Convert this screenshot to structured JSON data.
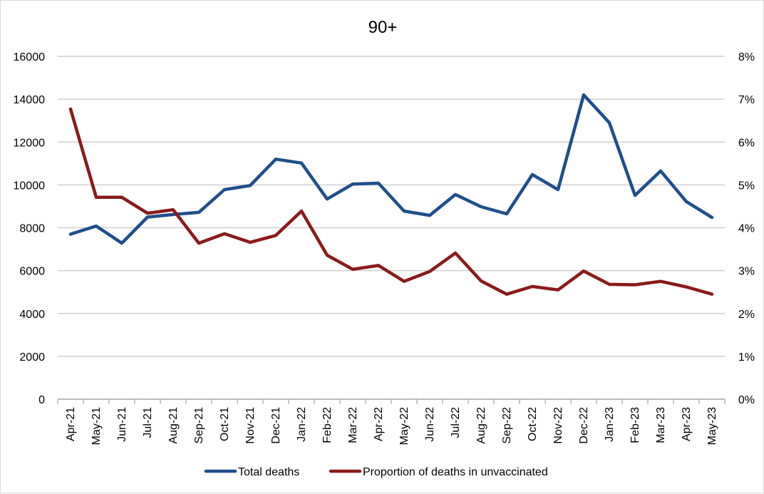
{
  "chart_data": {
    "type": "line",
    "title": "90+",
    "categories": [
      "Apr-21",
      "May-21",
      "Jun-21",
      "Jul-21",
      "Aug-21",
      "Sep-21",
      "Oct-21",
      "Nov-21",
      "Dec-21",
      "Jan-22",
      "Feb-22",
      "Mar-22",
      "Apr-22",
      "May-22",
      "Jun-22",
      "Jul-22",
      "Aug-22",
      "Sep-22",
      "Oct-22",
      "Nov-22",
      "Dec-22",
      "Jan-23",
      "Feb-23",
      "Mar-23",
      "Apr-23",
      "May-23"
    ],
    "left_axis": {
      "ylim": [
        0,
        16000
      ],
      "ticks": [
        "0",
        "2000",
        "4000",
        "6000",
        "8000",
        "10000",
        "12000",
        "14000",
        "16000"
      ]
    },
    "right_axis": {
      "ylim": [
        0,
        8
      ],
      "unit": "%",
      "ticks": [
        "0%",
        "1%",
        "2%",
        "3%",
        "4%",
        "5%",
        "6%",
        "7%",
        "8%"
      ]
    },
    "grid": true,
    "legend_position": "bottom",
    "series": [
      {
        "name": "Total deaths",
        "axis": "left",
        "color": "#1f4e8c",
        "values": [
          7700,
          8080,
          7280,
          8500,
          8620,
          8720,
          9780,
          9970,
          11200,
          11020,
          9340,
          10040,
          10080,
          8780,
          8580,
          9550,
          8980,
          8650,
          10480,
          9780,
          14200,
          12900,
          9510,
          10650,
          9220,
          8480
        ]
      },
      {
        "name": "Proportion of deaths in unvaccinated",
        "axis": "right",
        "color": "#8b1a1a",
        "values": [
          6.77,
          4.71,
          4.71,
          4.34,
          4.42,
          3.64,
          3.86,
          3.66,
          3.82,
          4.39,
          3.36,
          3.03,
          3.12,
          2.75,
          2.98,
          3.41,
          2.76,
          2.45,
          2.63,
          2.55,
          2.99,
          2.68,
          2.67,
          2.75,
          2.62,
          2.45
        ]
      }
    ]
  }
}
